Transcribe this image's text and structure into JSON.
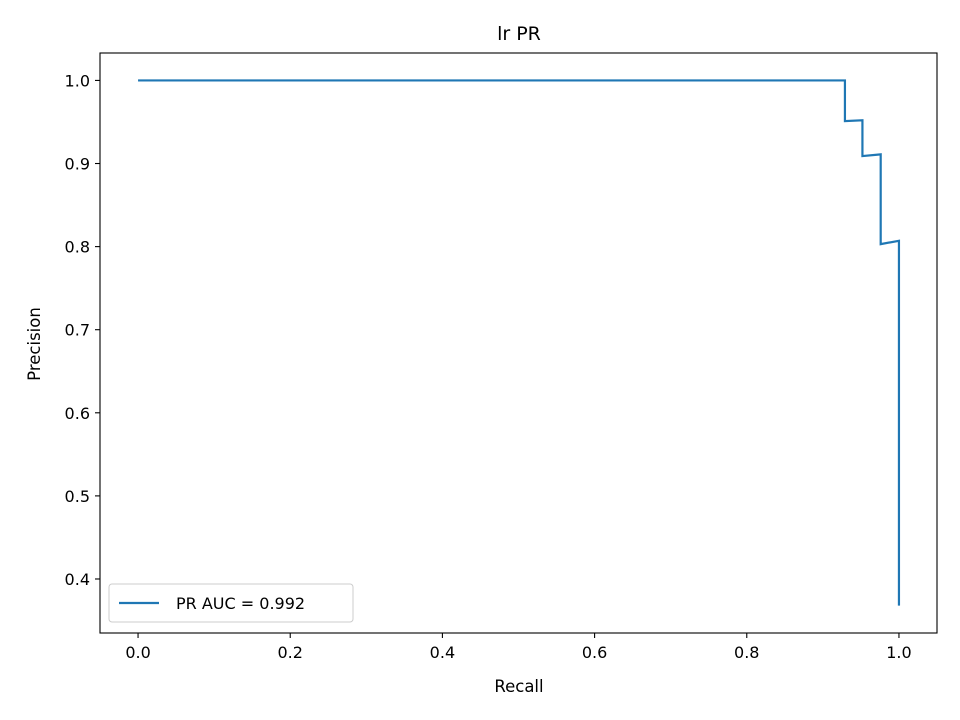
{
  "chart_data": {
    "type": "line",
    "title": "lr PR",
    "xlabel": "Recall",
    "ylabel": "Precision",
    "xlim": [
      -0.05,
      1.05
    ],
    "ylim": [
      0.335,
      1.033
    ],
    "xticks": [
      0.0,
      0.2,
      0.4,
      0.6,
      0.8,
      1.0
    ],
    "xtick_labels": [
      "0.0",
      "0.2",
      "0.4",
      "0.6",
      "0.8",
      "1.0"
    ],
    "yticks": [
      0.4,
      0.5,
      0.6,
      0.7,
      0.8,
      0.9,
      1.0
    ],
    "ytick_labels": [
      "0.4",
      "0.5",
      "0.6",
      "0.7",
      "0.8",
      "0.9",
      "1.0"
    ],
    "grid": false,
    "legend_position": "lower-left",
    "series": [
      {
        "name": "PR AUC = 0.992",
        "color": "#1f77b4",
        "x": [
          0.0,
          0.929,
          0.929,
          0.952,
          0.952,
          0.976,
          0.976,
          1.0,
          1.0
        ],
        "y": [
          1.0,
          1.0,
          0.951,
          0.952,
          0.909,
          0.911,
          0.803,
          0.807,
          0.368
        ]
      }
    ]
  }
}
